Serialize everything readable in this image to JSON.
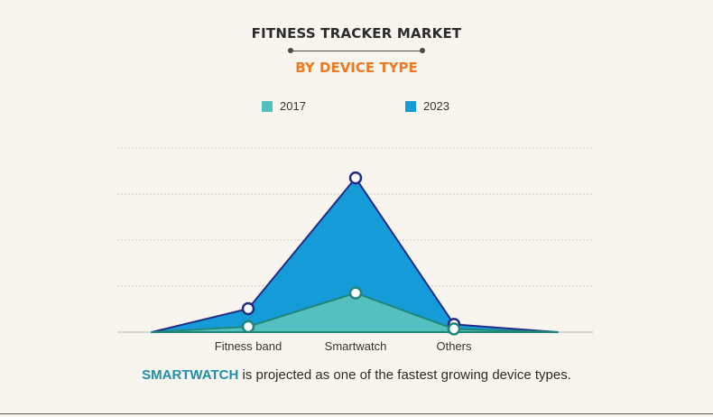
{
  "title": "FITNESS TRACKER MARKET",
  "subtitle": "BY DEVICE TYPE",
  "colors": {
    "accent_orange": "#f07820",
    "highlight_teal": "#1f8fa5",
    "series_2017": "#55c0c0",
    "series_2023": "#159cd8",
    "outline_2017": "#1e8777",
    "outline_2023": "#232c85"
  },
  "chart_data": {
    "type": "area",
    "title": "FITNESS TRACKER MARKET",
    "subtitle": "BY DEVICE TYPE",
    "categories": [
      "Fitness band",
      "Smartwatch",
      "Others"
    ],
    "series": [
      {
        "name": "2017",
        "values": [
          12,
          85,
          7
        ]
      },
      {
        "name": "2023",
        "values": [
          51,
          335,
          17
        ]
      }
    ],
    "ylim": [
      0,
      400
    ],
    "grid": true,
    "legend": "top-center",
    "xlabel": "",
    "ylabel": ""
  },
  "caption": {
    "highlight": "SMARTWATCH",
    "rest": " is projected as one of the fastest growing device  types."
  }
}
